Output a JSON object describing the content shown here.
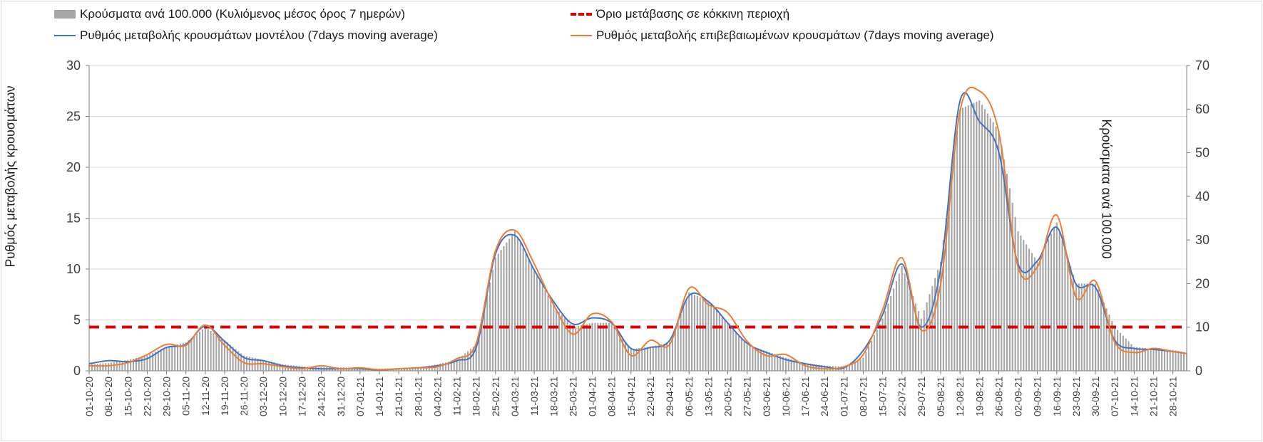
{
  "chart_data": {
    "type": "bar+line",
    "legend": {
      "bars": "Κρούσματα ανά 100.000 (Κυλιόμενος μέσος όρος 7 ημερών)",
      "threshold": "Όριο μετάβασης σε κόκκινη περιοχή",
      "model": "Ρυθμός μεταβολής κρουσμάτων μοντέλου (7days moving average)",
      "confirmed": "Ρυθμός μεταβολής επιβεβαιωμένων κρουσμάτων (7days moving average)"
    },
    "ylabel_left": "Ρυθμός μεταβολής κρουσμάτων",
    "ylabel_right": "Κρούσματα ανά 100.000",
    "ylim_left": [
      0,
      30
    ],
    "yticks_left": [
      "0",
      "5",
      "10",
      "15",
      "20",
      "25",
      "30"
    ],
    "ylim_right": [
      0,
      70
    ],
    "yticks_right": [
      "0",
      "10",
      "20",
      "30",
      "40",
      "50",
      "60",
      "70"
    ],
    "x_start": "2020-10-01",
    "x_end": "2021-11-02",
    "x_ticks": [
      "01-10-20",
      "08-10-20",
      "15-10-20",
      "22-10-20",
      "29-10-20",
      "05-11-20",
      "12-11-20",
      "19-11-20",
      "26-11-20",
      "03-12-20",
      "10-12-20",
      "17-12-20",
      "24-12-20",
      "31-12-20",
      "07-01-21",
      "14-01-21",
      "21-01-21",
      "28-01-21",
      "04-02-21",
      "11-02-21",
      "18-02-21",
      "25-02-21",
      "04-03-21",
      "11-03-21",
      "18-03-21",
      "25-03-21",
      "01-04-21",
      "08-04-21",
      "15-04-21",
      "22-04-21",
      "29-04-21",
      "06-05-21",
      "13-05-21",
      "20-05-21",
      "27-05-21",
      "03-06-21",
      "10-06-21",
      "17-06-21",
      "24-06-21",
      "01-07-21",
      "08-07-21",
      "15-07-21",
      "22-07-21",
      "29-07-21",
      "05-08-21",
      "12-08-21",
      "19-08-21",
      "26-08-21",
      "02-09-21",
      "09-09-21",
      "16-09-21",
      "23-09-21",
      "30-09-21",
      "07-10-21",
      "14-10-21",
      "21-10-21",
      "28-10-21"
    ],
    "threshold_value": 4.3,
    "cases_per_100k": [
      [
        "01-10-20",
        1.5
      ],
      [
        "08-10-20",
        1.8
      ],
      [
        "15-10-20",
        2.5
      ],
      [
        "22-10-20",
        3.5
      ],
      [
        "29-10-20",
        5.5
      ],
      [
        "05-11-20",
        6.5
      ],
      [
        "12-11-20",
        10
      ],
      [
        "19-11-20",
        7
      ],
      [
        "26-11-20",
        3.5
      ],
      [
        "03-12-20",
        2.5
      ],
      [
        "10-12-20",
        1.5
      ],
      [
        "17-12-20",
        1
      ],
      [
        "24-12-20",
        0.8
      ],
      [
        "31-12-20",
        0.8
      ],
      [
        "07-01-21",
        0.6
      ],
      [
        "14-01-21",
        0.5
      ],
      [
        "21-01-21",
        0.6
      ],
      [
        "28-01-21",
        0.8
      ],
      [
        "04-02-21",
        1.5
      ],
      [
        "11-02-21",
        2.5
      ],
      [
        "18-02-21",
        6
      ],
      [
        "25-02-21",
        26
      ],
      [
        "04-03-21",
        32
      ],
      [
        "11-03-21",
        23
      ],
      [
        "18-03-21",
        15
      ],
      [
        "25-03-21",
        10
      ],
      [
        "01-04-21",
        11
      ],
      [
        "08-04-21",
        11
      ],
      [
        "15-04-21",
        5
      ],
      [
        "22-04-21",
        5.5
      ],
      [
        "29-04-21",
        6.5
      ],
      [
        "06-05-21",
        18
      ],
      [
        "13-05-21",
        16
      ],
      [
        "20-05-21",
        11
      ],
      [
        "27-05-21",
        6
      ],
      [
        "03-06-21",
        4.5
      ],
      [
        "10-06-21",
        3
      ],
      [
        "17-06-21",
        1.8
      ],
      [
        "24-06-21",
        1.2
      ],
      [
        "01-07-21",
        1
      ],
      [
        "08-07-21",
        3
      ],
      [
        "15-07-21",
        12
      ],
      [
        "22-07-21",
        24
      ],
      [
        "29-07-21",
        12
      ],
      [
        "05-08-21",
        25
      ],
      [
        "12-08-21",
        60
      ],
      [
        "19-08-21",
        62
      ],
      [
        "26-08-21",
        55
      ],
      [
        "02-09-21",
        32
      ],
      [
        "09-09-21",
        25
      ],
      [
        "16-09-21",
        34
      ],
      [
        "23-09-21",
        20
      ],
      [
        "30-09-21",
        20
      ],
      [
        "07-10-21",
        10
      ],
      [
        "14-10-21",
        5.5
      ],
      [
        "21-10-21",
        5
      ],
      [
        "28-10-21",
        4.8
      ],
      [
        "02-11-21",
        4.2
      ]
    ],
    "series": [
      {
        "name": "Ρυθμός μεταβολής κρουσμάτων μοντέλου (7days moving average)",
        "color": "#4472c4",
        "points": [
          [
            "01-10-20",
            0.7
          ],
          [
            "08-10-20",
            1.0
          ],
          [
            "15-10-20",
            0.9
          ],
          [
            "22-10-20",
            1.2
          ],
          [
            "29-10-20",
            2.3
          ],
          [
            "05-11-20",
            2.6
          ],
          [
            "12-11-20",
            4.4
          ],
          [
            "19-11-20",
            2.9
          ],
          [
            "26-11-20",
            1.3
          ],
          [
            "03-12-20",
            1.0
          ],
          [
            "10-12-20",
            0.5
          ],
          [
            "17-12-20",
            0.3
          ],
          [
            "24-12-20",
            0.2
          ],
          [
            "31-12-20",
            0.2
          ],
          [
            "07-01-21",
            0.2
          ],
          [
            "14-01-21",
            0.1
          ],
          [
            "21-01-21",
            0.2
          ],
          [
            "28-01-21",
            0.3
          ],
          [
            "04-02-21",
            0.5
          ],
          [
            "11-02-21",
            1.0
          ],
          [
            "18-02-21",
            2.3
          ],
          [
            "25-02-21",
            11.5
          ],
          [
            "04-03-21",
            13.3
          ],
          [
            "11-03-21",
            9.9
          ],
          [
            "18-03-21",
            6.8
          ],
          [
            "25-03-21",
            4.6
          ],
          [
            "01-04-21",
            5.2
          ],
          [
            "08-04-21",
            4.7
          ],
          [
            "15-04-21",
            2.2
          ],
          [
            "22-04-21",
            2.3
          ],
          [
            "29-04-21",
            3.0
          ],
          [
            "06-05-21",
            7.4
          ],
          [
            "13-05-21",
            6.8
          ],
          [
            "20-05-21",
            4.7
          ],
          [
            "27-05-21",
            2.7
          ],
          [
            "03-06-21",
            1.8
          ],
          [
            "10-06-21",
            1.1
          ],
          [
            "17-06-21",
            0.7
          ],
          [
            "24-06-21",
            0.4
          ],
          [
            "01-07-21",
            0.3
          ],
          [
            "08-07-21",
            2.0
          ],
          [
            "15-07-21",
            5.5
          ],
          [
            "22-07-21",
            10.5
          ],
          [
            "29-07-21",
            4.3
          ],
          [
            "05-08-21",
            10.0
          ],
          [
            "12-08-21",
            26.5
          ],
          [
            "19-08-21",
            24.5
          ],
          [
            "26-08-21",
            21.5
          ],
          [
            "02-09-21",
            10.5
          ],
          [
            "09-09-21",
            10.8
          ],
          [
            "16-09-21",
            14.1
          ],
          [
            "23-09-21",
            8.5
          ],
          [
            "30-09-21",
            8.2
          ],
          [
            "07-10-21",
            3.0
          ],
          [
            "14-10-21",
            2.2
          ],
          [
            "21-10-21",
            2.1
          ],
          [
            "28-10-21",
            1.9
          ],
          [
            "02-11-21",
            1.7
          ]
        ]
      },
      {
        "name": "Ρυθμός μεταβολής επιβεβαιωμένων κρουσμάτων (7days moving average)",
        "color": "#ed7d31",
        "points": [
          [
            "01-10-20",
            0.5
          ],
          [
            "08-10-20",
            0.5
          ],
          [
            "15-10-20",
            0.8
          ],
          [
            "22-10-20",
            1.6
          ],
          [
            "29-10-20",
            2.6
          ],
          [
            "05-11-20",
            2.5
          ],
          [
            "12-11-20",
            4.5
          ],
          [
            "19-11-20",
            2.5
          ],
          [
            "26-11-20",
            0.8
          ],
          [
            "03-12-20",
            0.7
          ],
          [
            "10-12-20",
            0.4
          ],
          [
            "17-12-20",
            0.2
          ],
          [
            "24-12-20",
            0.5
          ],
          [
            "31-12-20",
            0.2
          ],
          [
            "07-01-21",
            0.3
          ],
          [
            "14-01-21",
            0.1
          ],
          [
            "21-01-21",
            0.2
          ],
          [
            "28-01-21",
            0.3
          ],
          [
            "04-02-21",
            0.4
          ],
          [
            "11-02-21",
            1.2
          ],
          [
            "18-02-21",
            2.7
          ],
          [
            "25-02-21",
            11.8
          ],
          [
            "04-03-21",
            13.8
          ],
          [
            "11-03-21",
            10.5
          ],
          [
            "18-03-21",
            6.5
          ],
          [
            "25-03-21",
            3.6
          ],
          [
            "01-04-21",
            5.6
          ],
          [
            "08-04-21",
            4.8
          ],
          [
            "15-04-21",
            1.5
          ],
          [
            "22-04-21",
            3.0
          ],
          [
            "29-04-21",
            2.6
          ],
          [
            "06-05-21",
            8.1
          ],
          [
            "13-05-21",
            6.5
          ],
          [
            "20-05-21",
            5.7
          ],
          [
            "27-05-21",
            2.9
          ],
          [
            "03-06-21",
            1.5
          ],
          [
            "10-06-21",
            1.6
          ],
          [
            "17-06-21",
            0.5
          ],
          [
            "24-06-21",
            0.2
          ],
          [
            "01-07-21",
            0.4
          ],
          [
            "08-07-21",
            1.6
          ],
          [
            "15-07-21",
            6.0
          ],
          [
            "22-07-21",
            11.1
          ],
          [
            "29-07-21",
            4.0
          ],
          [
            "05-08-21",
            8.5
          ],
          [
            "12-08-21",
            25.5
          ],
          [
            "19-08-21",
            27.5
          ],
          [
            "26-08-21",
            23.5
          ],
          [
            "02-09-21",
            10.2
          ],
          [
            "09-09-21",
            10.2
          ],
          [
            "16-09-21",
            15.3
          ],
          [
            "23-09-21",
            7.2
          ],
          [
            "30-09-21",
            8.8
          ],
          [
            "07-10-21",
            2.8
          ],
          [
            "14-10-21",
            1.8
          ],
          [
            "21-10-21",
            2.2
          ],
          [
            "28-10-21",
            1.9
          ],
          [
            "02-11-21",
            1.7
          ]
        ]
      }
    ]
  }
}
